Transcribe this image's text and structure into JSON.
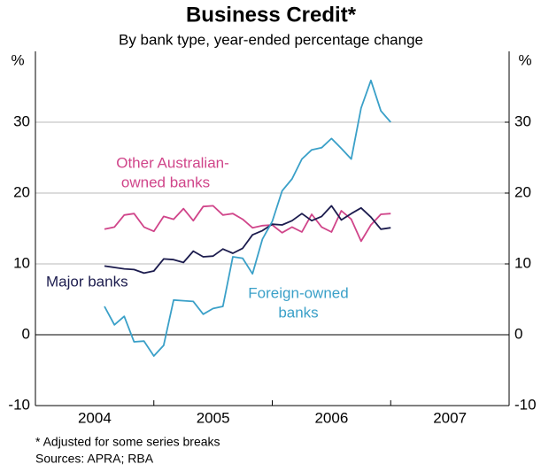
{
  "chart_data": {
    "type": "line",
    "title": "Business Credit*",
    "subtitle": "By bank type, year-ended percentage change",
    "ylabel": "%",
    "y2label": "%",
    "categories": [
      "2004",
      "2005",
      "2006",
      "2007"
    ],
    "xlim": [
      2004,
      2008
    ],
    "xticks": [
      2004,
      2005,
      2006,
      2007,
      2008
    ],
    "x": [
      2004.583,
      2004.667,
      2004.75,
      2004.833,
      2004.917,
      2005.0,
      2005.083,
      2005.167,
      2005.25,
      2005.333,
      2005.417,
      2005.5,
      2005.583,
      2005.667,
      2005.75,
      2005.833,
      2005.917,
      2006.0,
      2006.083,
      2006.167,
      2006.25,
      2006.333,
      2006.417,
      2006.5,
      2006.583,
      2006.667,
      2006.75,
      2006.833,
      2006.917,
      2007.0
    ],
    "ylim": [
      -10,
      40
    ],
    "yticks": [
      -10,
      0,
      10,
      20,
      30
    ],
    "y2lim": [
      -10,
      40
    ],
    "y2ticks": [
      -10,
      0,
      10,
      20,
      30
    ],
    "grid": true,
    "series": [
      {
        "name": [
          "Other Australian-",
          "owned banks"
        ],
        "color": "#d0458a",
        "values": [
          14.9,
          15.2,
          16.9,
          17.1,
          15.2,
          14.6,
          16.7,
          16.3,
          17.8,
          16.1,
          18.1,
          18.2,
          16.9,
          17.1,
          16.3,
          15.1,
          15.4,
          15.5,
          14.4,
          15.2,
          14.5,
          17.0,
          15.2,
          14.5,
          17.5,
          16.3,
          13.2,
          15.5,
          17.0,
          17.1
        ]
      },
      {
        "name": [
          "Major banks"
        ],
        "color": "#1c1c4e",
        "values": [
          9.7,
          9.5,
          9.3,
          9.2,
          8.7,
          9.0,
          10.7,
          10.6,
          10.2,
          11.8,
          11.0,
          11.1,
          12.1,
          11.5,
          12.2,
          14.1,
          14.7,
          15.6,
          15.5,
          16.1,
          17.1,
          16.1,
          16.7,
          18.2,
          16.2,
          17.1,
          17.9,
          16.6,
          14.9,
          15.1
        ]
      },
      {
        "name": [
          "Foreign-owned",
          "banks"
        ],
        "color": "#3aa0c8",
        "values": [
          4.0,
          1.4,
          2.6,
          -1.0,
          -0.9,
          -3.0,
          -1.5,
          4.9,
          4.8,
          4.7,
          2.9,
          3.7,
          4.0,
          11.0,
          10.8,
          8.6,
          13.5,
          16.0,
          20.3,
          22.0,
          24.8,
          26.1,
          26.4,
          27.7,
          26.3,
          24.8,
          32.0,
          35.9,
          31.6,
          30.0
        ]
      }
    ],
    "footnotes": [
      "*   Adjusted for some series breaks",
      "Sources: APRA; RBA"
    ]
  }
}
